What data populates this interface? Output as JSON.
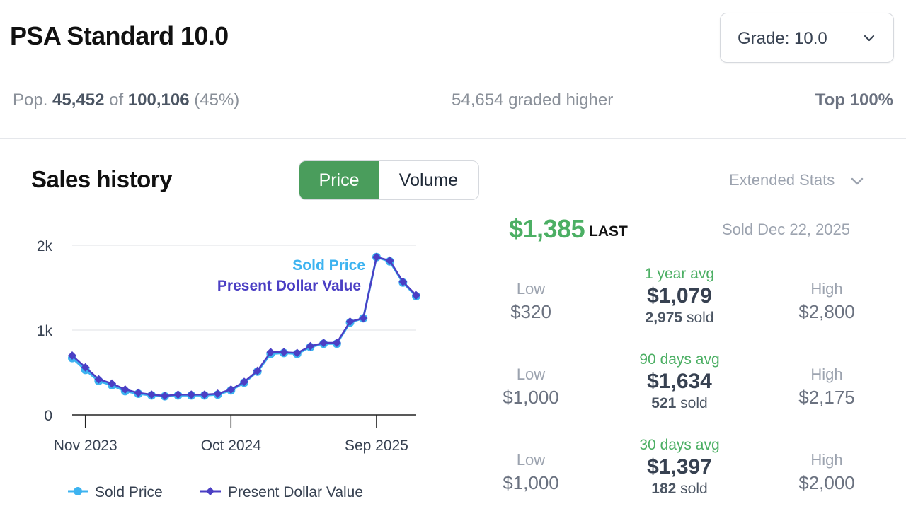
{
  "header": {
    "title": "PSA Standard 10.0"
  },
  "grade_select": {
    "label": "Grade: 10.0",
    "icon": "chevron-down-icon"
  },
  "population": {
    "prefix": "Pop.",
    "count": "45,452",
    "of_word": "of",
    "total": "100,106",
    "percent": "(45%)",
    "graded_higher": "54,654 graded higher",
    "top": "Top 100%"
  },
  "sales": {
    "title": "Sales history",
    "tabs": [
      {
        "label": "Price",
        "active": true
      },
      {
        "label": "Volume",
        "active": false
      }
    ],
    "extended_stats": "Extended Stats"
  },
  "last_sale": {
    "price": "$1,385",
    "label": "LAST",
    "date": "Sold Dec 22, 2025"
  },
  "stats": [
    {
      "low_label": "Low",
      "low": "$320",
      "avg_label": "1 year avg",
      "avg": "$1,079",
      "sold_count": "2,975",
      "sold_word": "sold",
      "high_label": "High",
      "high": "$2,800"
    },
    {
      "low_label": "Low",
      "low": "$1,000",
      "avg_label": "90 days avg",
      "avg": "$1,634",
      "sold_count": "521",
      "sold_word": "sold",
      "high_label": "High",
      "high": "$2,175"
    },
    {
      "low_label": "Low",
      "low": "$1,000",
      "avg_label": "30 days avg",
      "avg": "$1,397",
      "sold_count": "182",
      "sold_word": "sold",
      "high_label": "High",
      "high": "$2,000"
    }
  ],
  "colors": {
    "accent_green": "#4caf64",
    "sold_price": "#3db3f0",
    "present_value": "#4b3fc4"
  },
  "chart_data": {
    "type": "line",
    "title": "",
    "xlabel": "",
    "ylabel": "",
    "ylim": [
      0,
      2000
    ],
    "y_ticks": [
      {
        "value": 0,
        "label": "0"
      },
      {
        "value": 1000,
        "label": "1k"
      },
      {
        "value": 2000,
        "label": "2k"
      }
    ],
    "x_ticks": [
      {
        "index": 1,
        "label": "Nov 2023"
      },
      {
        "index": 12,
        "label": "Oct 2024"
      },
      {
        "index": 23,
        "label": "Sep 2025"
      }
    ],
    "grid": true,
    "legend_position": "bottom",
    "x": [
      "2023-10",
      "2023-11",
      "2023-12",
      "2024-01",
      "2024-02",
      "2024-03",
      "2024-04",
      "2024-05",
      "2024-06",
      "2024-07",
      "2024-08",
      "2024-09",
      "2024-10",
      "2024-11",
      "2024-12",
      "2025-01",
      "2025-02",
      "2025-03",
      "2025-04",
      "2025-05",
      "2025-06",
      "2025-07",
      "2025-08",
      "2025-09",
      "2025-10",
      "2025-11",
      "2025-12"
    ],
    "series": [
      {
        "name": "Sold Price",
        "color": "#3db3f0",
        "values": [
          670,
          530,
          400,
          350,
          280,
          250,
          230,
          220,
          230,
          230,
          230,
          240,
          290,
          380,
          510,
          720,
          730,
          720,
          800,
          840,
          840,
          1090,
          1140,
          1860,
          1810,
          1560,
          1400
        ]
      },
      {
        "name": "Present Dollar Value",
        "color": "#4b3fc4",
        "values": [
          700,
          560,
          420,
          370,
          300,
          260,
          240,
          225,
          240,
          240,
          240,
          250,
          300,
          390,
          520,
          740,
          740,
          730,
          810,
          850,
          850,
          1100,
          1140,
          1860,
          1820,
          1570,
          1410
        ]
      }
    ],
    "annotations": [
      "Sold Price",
      "Present Dollar Value"
    ]
  }
}
